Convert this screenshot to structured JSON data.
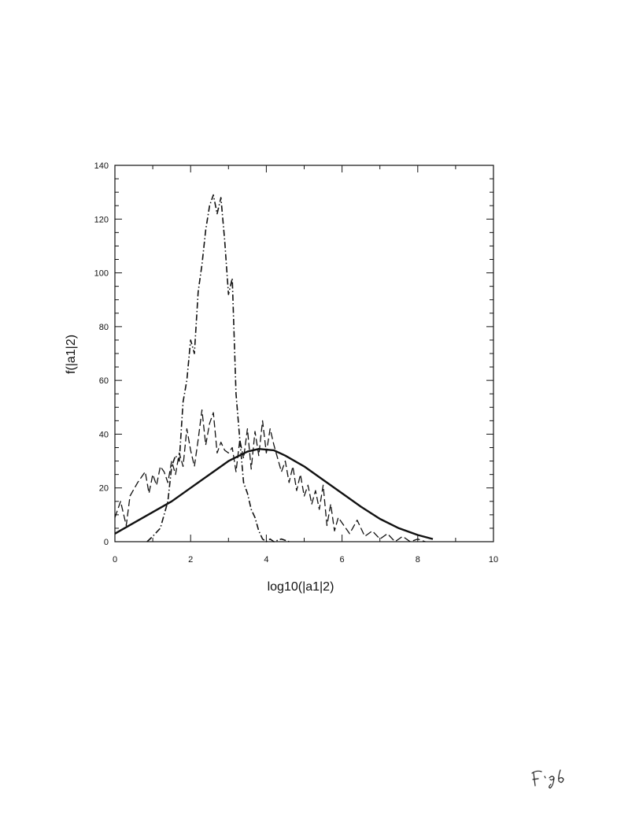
{
  "page": {
    "signature_text": "Fig6"
  },
  "chart_data": {
    "type": "line",
    "title": "",
    "xlabel": "log10(|a1|2)",
    "ylabel": "f(|a1|2)",
    "xlim": [
      0,
      10
    ],
    "ylim": [
      0,
      140
    ],
    "x_ticks": [
      0,
      2,
      4,
      6,
      8,
      10
    ],
    "y_ticks": [
      0,
      20,
      40,
      60,
      80,
      100,
      120,
      140
    ],
    "grid": false,
    "legend": "none",
    "colors": {
      "ink": "#111111"
    },
    "series": [
      {
        "style": "solid",
        "x": [
          0,
          0.5,
          1.0,
          1.5,
          2.0,
          2.5,
          3.0,
          3.5,
          3.8,
          4.2,
          4.5,
          5.0,
          5.5,
          6.0,
          6.5,
          7.0,
          7.5,
          8.0,
          8.4
        ],
        "y": [
          3,
          7,
          11,
          15,
          20,
          25,
          30,
          33.5,
          34.5,
          34,
          32,
          28,
          23,
          18,
          13,
          8.5,
          5,
          2.5,
          1
        ]
      },
      {
        "style": "dashed",
        "x": [
          0,
          0.15,
          0.3,
          0.4,
          0.6,
          0.8,
          0.9,
          1.0,
          1.1,
          1.2,
          1.3,
          1.4,
          1.5,
          1.6,
          1.7,
          1.8,
          1.9,
          2.0,
          2.1,
          2.2,
          2.3,
          2.4,
          2.5,
          2.6,
          2.7,
          2.8,
          2.9,
          3.0,
          3.1,
          3.2,
          3.3,
          3.4,
          3.5,
          3.6,
          3.7,
          3.8,
          3.9,
          4.0,
          4.1,
          4.2,
          4.3,
          4.4,
          4.5,
          4.6,
          4.7,
          4.8,
          4.9,
          5.0,
          5.1,
          5.2,
          5.3,
          5.4,
          5.5,
          5.6,
          5.7,
          5.8,
          5.9,
          6.0,
          6.2,
          6.4,
          6.6,
          6.8,
          7.0,
          7.2,
          7.4,
          7.6,
          7.8,
          8.0,
          8.2
        ],
        "y": [
          9,
          15,
          6,
          17,
          22,
          26,
          18,
          25,
          21,
          28,
          26,
          22,
          30,
          25,
          33,
          28,
          42,
          34,
          28,
          38,
          49,
          36,
          44,
          48,
          33,
          37,
          34,
          33,
          35,
          26,
          38,
          31,
          42,
          27,
          41,
          32,
          45,
          33,
          42,
          36,
          31,
          26,
          30,
          22,
          28,
          19,
          25,
          17,
          21,
          14,
          19,
          12,
          21,
          6,
          14,
          4,
          9,
          7,
          3,
          8,
          2,
          4,
          1,
          3,
          0,
          2,
          0,
          1,
          0
        ]
      },
      {
        "style": "dashdot",
        "x": [
          0.85,
          1.0,
          1.2,
          1.4,
          1.5,
          1.6,
          1.7,
          1.8,
          1.9,
          2.0,
          2.1,
          2.2,
          2.3,
          2.4,
          2.5,
          2.6,
          2.7,
          2.8,
          2.9,
          3.0,
          3.1,
          3.2,
          3.3,
          3.4,
          3.5,
          3.6,
          3.7,
          3.8,
          3.9,
          4.0,
          4.1,
          4.2,
          4.4,
          4.6
        ],
        "y": [
          0,
          2,
          5,
          15,
          28,
          32,
          30,
          52,
          60,
          75,
          70,
          93,
          103,
          116,
          125,
          129,
          122,
          128,
          112,
          92,
          98,
          55,
          38,
          22,
          18,
          12,
          9,
          4,
          1,
          0,
          1,
          0,
          1,
          0
        ]
      }
    ]
  }
}
